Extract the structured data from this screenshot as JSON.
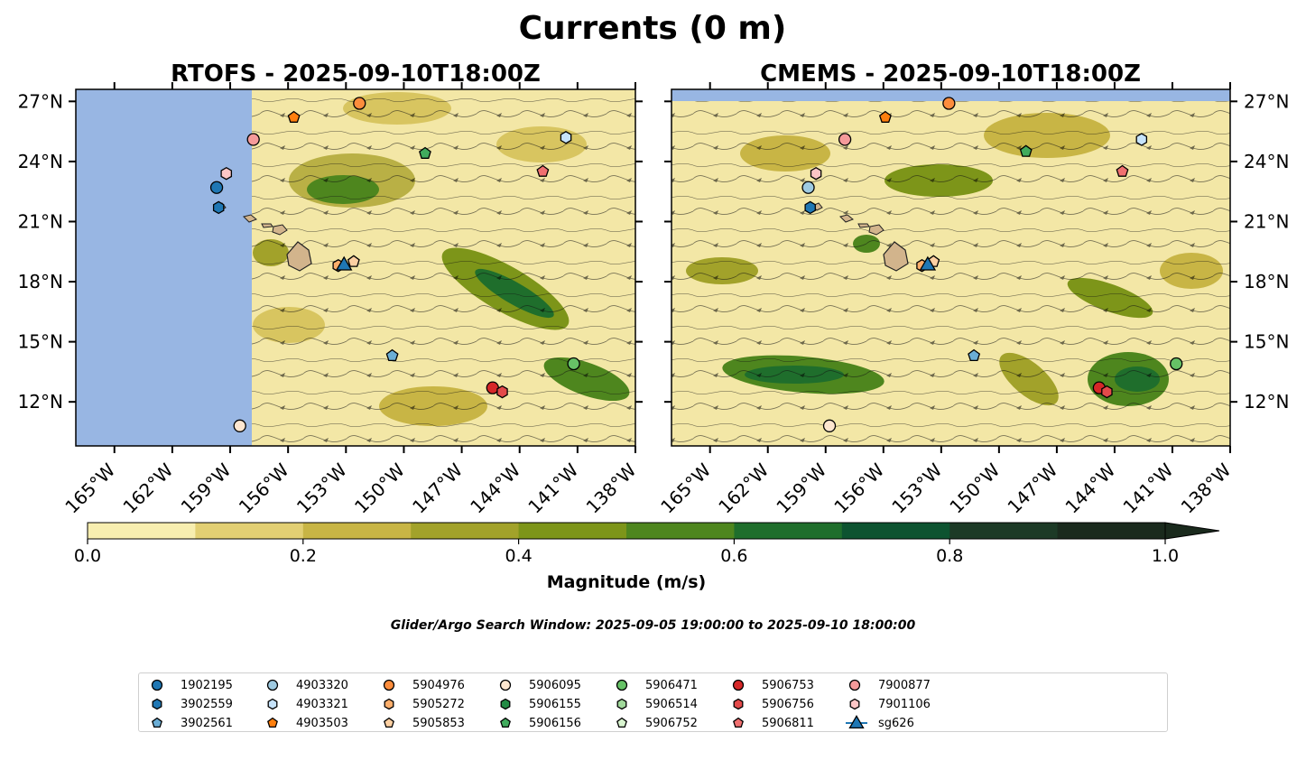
{
  "title": "Currents (0 m)",
  "panels": [
    {
      "id": "rtofs",
      "title": "RTOFS - 2025-09-10T18:00Z"
    },
    {
      "id": "cmems",
      "title": "CMEMS - 2025-09-10T18:00Z"
    }
  ],
  "lat_labels": [
    "27°N",
    "24°N",
    "21°N",
    "18°N",
    "15°N",
    "12°N"
  ],
  "lon_labels": [
    "165°W",
    "162°W",
    "159°W",
    "156°W",
    "153°W",
    "150°W",
    "147°W",
    "144°W",
    "141°W",
    "138°W"
  ],
  "colorbar": {
    "label": "Magnitude (m/s)",
    "ticks": [
      "0.0",
      "0.2",
      "0.4",
      "0.6",
      "0.8",
      "1.0"
    ],
    "colors": [
      "#f7eeb0",
      "#e2cf73",
      "#c8b545",
      "#a2a22a",
      "#7d9519",
      "#4e861e",
      "#1f6e2c",
      "#0d5330",
      "#1c3a26",
      "#1a2a1d"
    ],
    "extend": "max"
  },
  "search_window": "Glider/Argo Search Window: 2025-09-05 19:00:00 to 2025-09-10 18:00:00",
  "colors": {
    "land": "#d2b48c",
    "masked_ocean": "#98b6e3",
    "glider": "#1f77b4"
  },
  "floats": [
    {
      "id": "1902195",
      "marker": "circle",
      "color": "#1f77b4"
    },
    {
      "id": "3902559",
      "marker": "hexagon",
      "color": "#1f77b4"
    },
    {
      "id": "3902561",
      "marker": "pentagon",
      "color": "#6baed6"
    },
    {
      "id": "4903320",
      "marker": "circle",
      "color": "#9ecae1"
    },
    {
      "id": "4903321",
      "marker": "hexagon",
      "color": "#c6e3fa"
    },
    {
      "id": "4903503",
      "marker": "pentagon",
      "color": "#ff7f0e"
    },
    {
      "id": "5904976",
      "marker": "circle",
      "color": "#fd8d3c"
    },
    {
      "id": "5905272",
      "marker": "hexagon",
      "color": "#fdae6b"
    },
    {
      "id": "5905853",
      "marker": "pentagon",
      "color": "#fdd0a2"
    },
    {
      "id": "5906095",
      "marker": "circle",
      "color": "#fde6cf"
    },
    {
      "id": "5906155",
      "marker": "hexagon",
      "color": "#238b45"
    },
    {
      "id": "5906156",
      "marker": "pentagon",
      "color": "#41ab5d"
    },
    {
      "id": "5906471",
      "marker": "circle",
      "color": "#66c266"
    },
    {
      "id": "5906514",
      "marker": "hexagon",
      "color": "#a1d99b"
    },
    {
      "id": "5906752",
      "marker": "pentagon",
      "color": "#d9f5d0"
    },
    {
      "id": "5906753",
      "marker": "circle",
      "color": "#d62728"
    },
    {
      "id": "5906756",
      "marker": "hexagon",
      "color": "#e34a4a"
    },
    {
      "id": "5906811",
      "marker": "pentagon",
      "color": "#f07070"
    },
    {
      "id": "7900877",
      "marker": "circle",
      "color": "#f59a9a"
    },
    {
      "id": "7901106",
      "marker": "hexagon",
      "color": "#fcc6c6"
    },
    {
      "id": "sg626",
      "marker": "triangle",
      "color": "#1f77b4"
    }
  ],
  "positions": {
    "rtofs": [
      {
        "id": "1902195",
        "lon": -159.7,
        "lat": 22.7
      },
      {
        "id": "3902559",
        "lon": -159.6,
        "lat": 21.7
      },
      {
        "id": "7901106",
        "lon": -159.2,
        "lat": 23.4
      },
      {
        "id": "7900877",
        "lon": -157.8,
        "lat": 25.1
      },
      {
        "id": "4903503",
        "lon": -155.7,
        "lat": 26.2
      },
      {
        "id": "5904976",
        "lon": -152.3,
        "lat": 26.9
      },
      {
        "id": "5906156",
        "lon": -148.9,
        "lat": 24.4
      },
      {
        "id": "4903321",
        "lon": -141.6,
        "lat": 25.2
      },
      {
        "id": "5906811",
        "lon": -142.8,
        "lat": 23.5
      },
      {
        "id": "5905272",
        "lon": -153.4,
        "lat": 18.8
      },
      {
        "id": "5905853",
        "lon": -152.6,
        "lat": 19.0
      },
      {
        "id": "sg626",
        "lon": -153.1,
        "lat": 18.8
      },
      {
        "id": "3902561",
        "lon": -150.6,
        "lat": 14.3
      },
      {
        "id": "5906471",
        "lon": -141.2,
        "lat": 13.9
      },
      {
        "id": "5906753",
        "lon": -145.4,
        "lat": 12.7
      },
      {
        "id": "5906756",
        "lon": -144.9,
        "lat": 12.5
      },
      {
        "id": "5906095",
        "lon": -158.5,
        "lat": 10.8
      }
    ],
    "cmems": [
      {
        "id": "4903320",
        "lon": -159.9,
        "lat": 22.7
      },
      {
        "id": "3902559",
        "lon": -159.8,
        "lat": 21.7
      },
      {
        "id": "7901106",
        "lon": -159.5,
        "lat": 23.4
      },
      {
        "id": "7900877",
        "lon": -158.0,
        "lat": 25.1
      },
      {
        "id": "4903503",
        "lon": -155.9,
        "lat": 26.2
      },
      {
        "id": "5904976",
        "lon": -152.6,
        "lat": 26.9
      },
      {
        "id": "5906156",
        "lon": -148.6,
        "lat": 24.5
      },
      {
        "id": "4903321",
        "lon": -142.6,
        "lat": 25.1
      },
      {
        "id": "5906811",
        "lon": -143.6,
        "lat": 23.5
      },
      {
        "id": "5905272",
        "lon": -154.0,
        "lat": 18.8
      },
      {
        "id": "5905853",
        "lon": -153.4,
        "lat": 19.0
      },
      {
        "id": "sg626",
        "lon": -153.7,
        "lat": 18.8
      },
      {
        "id": "3902561",
        "lon": -151.3,
        "lat": 14.3
      },
      {
        "id": "5906471",
        "lon": -140.8,
        "lat": 13.9
      },
      {
        "id": "5906753",
        "lon": -144.8,
        "lat": 12.7
      },
      {
        "id": "5906756",
        "lon": -144.4,
        "lat": 12.5
      },
      {
        "id": "5906095",
        "lon": -158.8,
        "lat": 10.8
      }
    ]
  }
}
